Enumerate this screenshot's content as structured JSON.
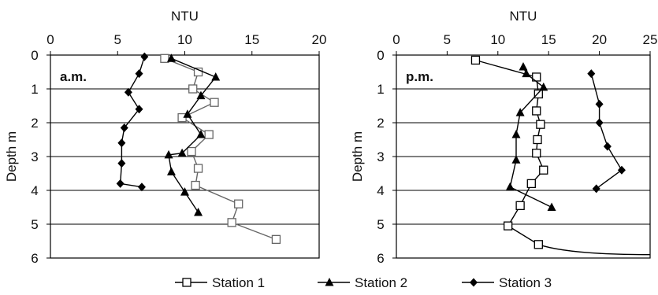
{
  "chart_data": [
    {
      "type": "line",
      "title": "",
      "panel_label": "a.m.",
      "xlabel": "NTU",
      "ylabel": "Depth m",
      "xlim": [
        0,
        20
      ],
      "ylim": [
        0,
        6
      ],
      "x_ticks": [
        "0",
        "5",
        "10",
        "15",
        "20"
      ],
      "y_ticks": [
        "0",
        "1",
        "2",
        "3",
        "4",
        "5",
        "6"
      ],
      "y_inverted": true,
      "x_axis_position": "top",
      "grid": "horizontal",
      "series": [
        {
          "name": "Station 1",
          "marker": "square-open",
          "color": "#666666",
          "points": [
            [
              8.5,
              0.1
            ],
            [
              11.0,
              0.5
            ],
            [
              10.6,
              1.0
            ],
            [
              12.2,
              1.4
            ],
            [
              9.8,
              1.85
            ],
            [
              11.8,
              2.35
            ],
            [
              10.5,
              2.85
            ],
            [
              11.0,
              3.35
            ],
            [
              10.8,
              3.85
            ],
            [
              14.0,
              4.4
            ],
            [
              13.5,
              4.95
            ],
            [
              16.8,
              5.45
            ]
          ]
        },
        {
          "name": "Station 2",
          "marker": "triangle-filled",
          "color": "#000000",
          "points": [
            [
              9.0,
              0.1
            ],
            [
              12.3,
              0.65
            ],
            [
              11.2,
              1.2
            ],
            [
              10.2,
              1.75
            ],
            [
              11.2,
              2.35
            ],
            [
              9.8,
              2.9
            ],
            [
              8.8,
              2.95
            ],
            [
              9.0,
              3.45
            ],
            [
              10.0,
              4.05
            ],
            [
              11.0,
              4.65
            ]
          ]
        },
        {
          "name": "Station 3",
          "marker": "diamond-filled",
          "color": "#000000",
          "points": [
            [
              7.0,
              0.05
            ],
            [
              6.6,
              0.55
            ],
            [
              5.8,
              1.1
            ],
            [
              6.6,
              1.6
            ],
            [
              5.5,
              2.15
            ],
            [
              5.3,
              2.6
            ],
            [
              5.3,
              3.2
            ],
            [
              5.2,
              3.8
            ],
            [
              6.8,
              3.9
            ]
          ]
        }
      ]
    },
    {
      "type": "line",
      "title": "",
      "panel_label": "p.m.",
      "xlabel": "NTU",
      "ylabel": "Depth m",
      "xlim": [
        0,
        25
      ],
      "ylim": [
        0,
        6
      ],
      "x_ticks": [
        "0",
        "5",
        "10",
        "15",
        "20",
        "25"
      ],
      "y_ticks": [
        "0",
        "1",
        "2",
        "3",
        "4",
        "5",
        "6"
      ],
      "y_inverted": true,
      "x_axis_position": "top",
      "grid": "horizontal",
      "series": [
        {
          "name": "Station 1",
          "marker": "square-open",
          "color": "#000000",
          "points": [
            [
              7.8,
              0.15
            ],
            [
              13.8,
              0.65
            ],
            [
              14.0,
              1.15
            ],
            [
              13.8,
              1.65
            ],
            [
              14.2,
              2.05
            ],
            [
              13.9,
              2.5
            ],
            [
              13.8,
              2.9
            ],
            [
              14.5,
              3.4
            ],
            [
              13.3,
              3.8
            ],
            [
              12.2,
              4.45
            ],
            [
              11.0,
              5.05
            ],
            [
              14.0,
              5.6
            ]
          ],
          "tail_to": [
            25.0,
            5.9
          ]
        },
        {
          "name": "Station 2",
          "marker": "triangle-filled",
          "color": "#000000",
          "points": [
            [
              12.5,
              0.35
            ],
            [
              12.8,
              0.55
            ],
            [
              14.5,
              0.95
            ],
            [
              12.2,
              1.7
            ],
            [
              11.8,
              2.35
            ],
            [
              11.8,
              3.1
            ],
            [
              11.2,
              3.9
            ],
            [
              15.3,
              4.5
            ]
          ]
        },
        {
          "name": "Station 3",
          "marker": "diamond-filled",
          "color": "#000000",
          "points": [
            [
              19.2,
              0.55
            ],
            [
              20.0,
              1.45
            ],
            [
              20.0,
              2.0
            ],
            [
              20.8,
              2.7
            ],
            [
              22.2,
              3.4
            ],
            [
              19.7,
              3.95
            ]
          ]
        }
      ]
    }
  ],
  "legend": {
    "position": "bottom",
    "items": [
      "Station 1",
      "Station 2",
      "Station 3"
    ]
  }
}
